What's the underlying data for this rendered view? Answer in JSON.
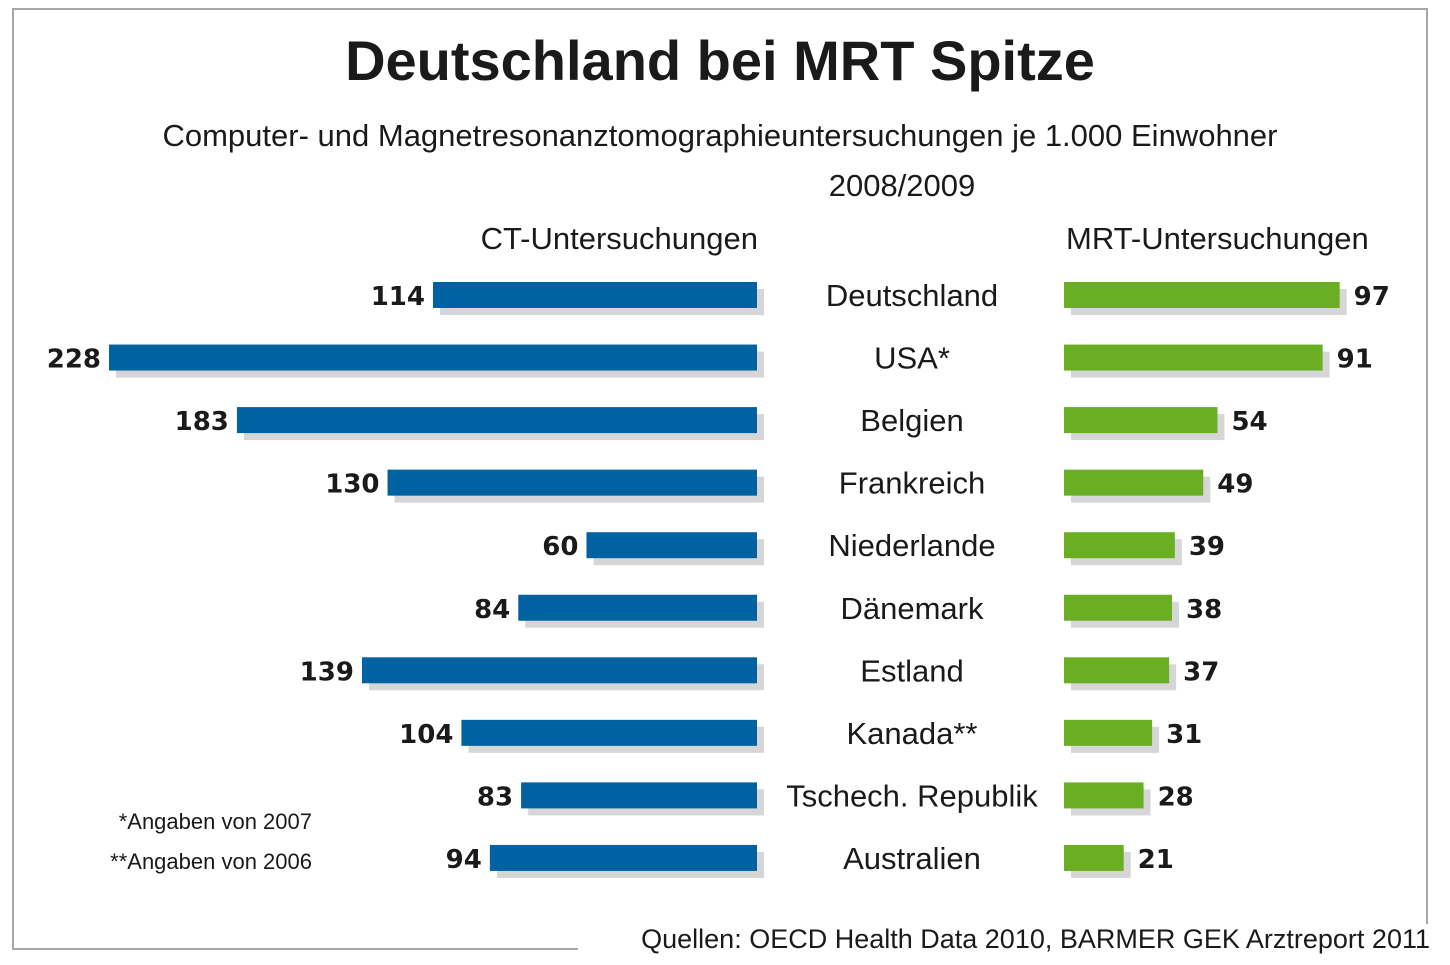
{
  "chart_data": {
    "type": "bar",
    "orientation": "horizontal-butterfly",
    "title": "Deutschland bei MRT Spitze",
    "subtitle": "Computer- und Magnetresonanztomographieuntersuchungen je 1.000 Einwohner",
    "period": "2008/2009",
    "categories": [
      "Deutschland",
      "USA*",
      "Belgien",
      "Frankreich",
      "Niederlande",
      "Dänemark",
      "Estland",
      "Kanada**",
      "Tschech. Republik",
      "Australien"
    ],
    "series": [
      {
        "name": "CT-Untersuchungen",
        "side": "left",
        "color": "#0062A0",
        "values": [
          114,
          228,
          183,
          130,
          60,
          84,
          139,
          104,
          83,
          94
        ]
      },
      {
        "name": "MRT-Untersuchungen",
        "side": "right",
        "color": "#6AAF23",
        "values": [
          97,
          91,
          54,
          49,
          39,
          38,
          37,
          31,
          28,
          21
        ]
      }
    ],
    "shadow_color": "#D6D6D8",
    "xlabel": "",
    "ylabel": "",
    "grid": false,
    "notes": [
      "*Angaben von 2007",
      "**Angaben von 2006"
    ],
    "source": "Quellen: OECD Health Data 2010, BARMER GEK Arztreport 2011"
  }
}
